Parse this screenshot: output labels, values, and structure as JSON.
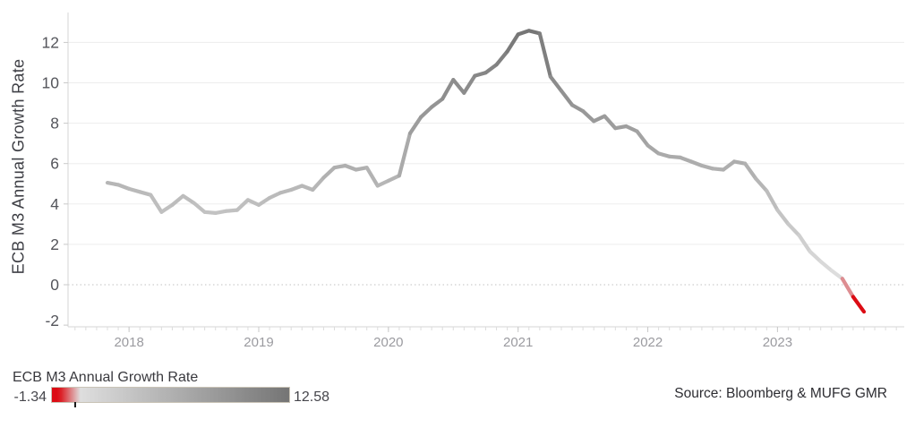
{
  "ylabel": "ECB M3 Annual Growth Rate",
  "legend": {
    "title": "ECB M3 Annual Growth Rate",
    "min_label": "-1.34",
    "max_label": "12.58"
  },
  "source": "Source: Bloomberg & MUFG GMR",
  "chart_data": {
    "type": "line",
    "title": "",
    "xlabel": "",
    "ylabel": "ECB M3 Annual Growth Rate",
    "grid": "horizontal solid light gray, zero line dotted",
    "legend_position": "bottom-left colorbar",
    "y_ticks": [
      12,
      10,
      8,
      6,
      4,
      2,
      0,
      -2
    ],
    "ylim": [
      -2.1,
      13.5
    ],
    "x_year_ticks": [
      {
        "label": "2018",
        "month_index": 2
      },
      {
        "label": "2019",
        "month_index": 14
      },
      {
        "label": "2020",
        "month_index": 26
      },
      {
        "label": "2021",
        "month_index": 38
      },
      {
        "label": "2022",
        "month_index": 50
      },
      {
        "label": "2023",
        "month_index": 62
      }
    ],
    "x": [
      "2017-11",
      "2017-12",
      "2018-01",
      "2018-02",
      "2018-03",
      "2018-04",
      "2018-05",
      "2018-06",
      "2018-07",
      "2018-08",
      "2018-09",
      "2018-10",
      "2018-11",
      "2018-12",
      "2019-01",
      "2019-02",
      "2019-03",
      "2019-04",
      "2019-05",
      "2019-06",
      "2019-07",
      "2019-08",
      "2019-09",
      "2019-10",
      "2019-11",
      "2019-12",
      "2020-01",
      "2020-02",
      "2020-03",
      "2020-04",
      "2020-05",
      "2020-06",
      "2020-07",
      "2020-08",
      "2020-09",
      "2020-10",
      "2020-11",
      "2020-12",
      "2021-01",
      "2021-02",
      "2021-03",
      "2021-04",
      "2021-05",
      "2021-06",
      "2021-07",
      "2021-08",
      "2021-09",
      "2021-10",
      "2021-11",
      "2021-12",
      "2022-01",
      "2022-02",
      "2022-03",
      "2022-04",
      "2022-05",
      "2022-06",
      "2022-07",
      "2022-08",
      "2022-09",
      "2022-10",
      "2022-11",
      "2022-12",
      "2023-01",
      "2023-02",
      "2023-03",
      "2023-04",
      "2023-05",
      "2023-06",
      "2023-07",
      "2023-08",
      "2023-09"
    ],
    "series": [
      {
        "name": "ECB M3 Annual Growth Rate",
        "values": [
          5.05,
          4.95,
          4.75,
          4.6,
          4.45,
          3.6,
          3.95,
          4.4,
          4.05,
          3.6,
          3.55,
          3.65,
          3.7,
          4.2,
          3.95,
          4.3,
          4.55,
          4.7,
          4.9,
          4.7,
          5.3,
          5.8,
          5.9,
          5.7,
          5.8,
          4.9,
          5.15,
          5.4,
          7.5,
          8.3,
          8.8,
          9.2,
          10.15,
          9.5,
          10.35,
          10.5,
          10.9,
          11.55,
          12.4,
          12.58,
          12.45,
          10.3,
          9.6,
          8.9,
          8.6,
          8.1,
          8.35,
          7.75,
          7.85,
          7.6,
          6.9,
          6.5,
          6.35,
          6.3,
          6.1,
          5.9,
          5.75,
          5.7,
          6.1,
          6.0,
          5.25,
          4.65,
          3.7,
          3.0,
          2.45,
          1.65,
          1.15,
          0.7,
          0.3,
          -0.6,
          -1.34
        ]
      }
    ],
    "color_scale": {
      "description": "line colored by value: red at minimum fading to light gray, darkening to dark gray at maximum",
      "min": -1.34,
      "max": 12.58,
      "red_color": "#dc0c14",
      "light_color": "#dedede",
      "dark_color": "#757575",
      "red_hold_fraction": 0.03,
      "red_fade_end_fraction": 0.12,
      "zero_marker_value": 0
    }
  }
}
